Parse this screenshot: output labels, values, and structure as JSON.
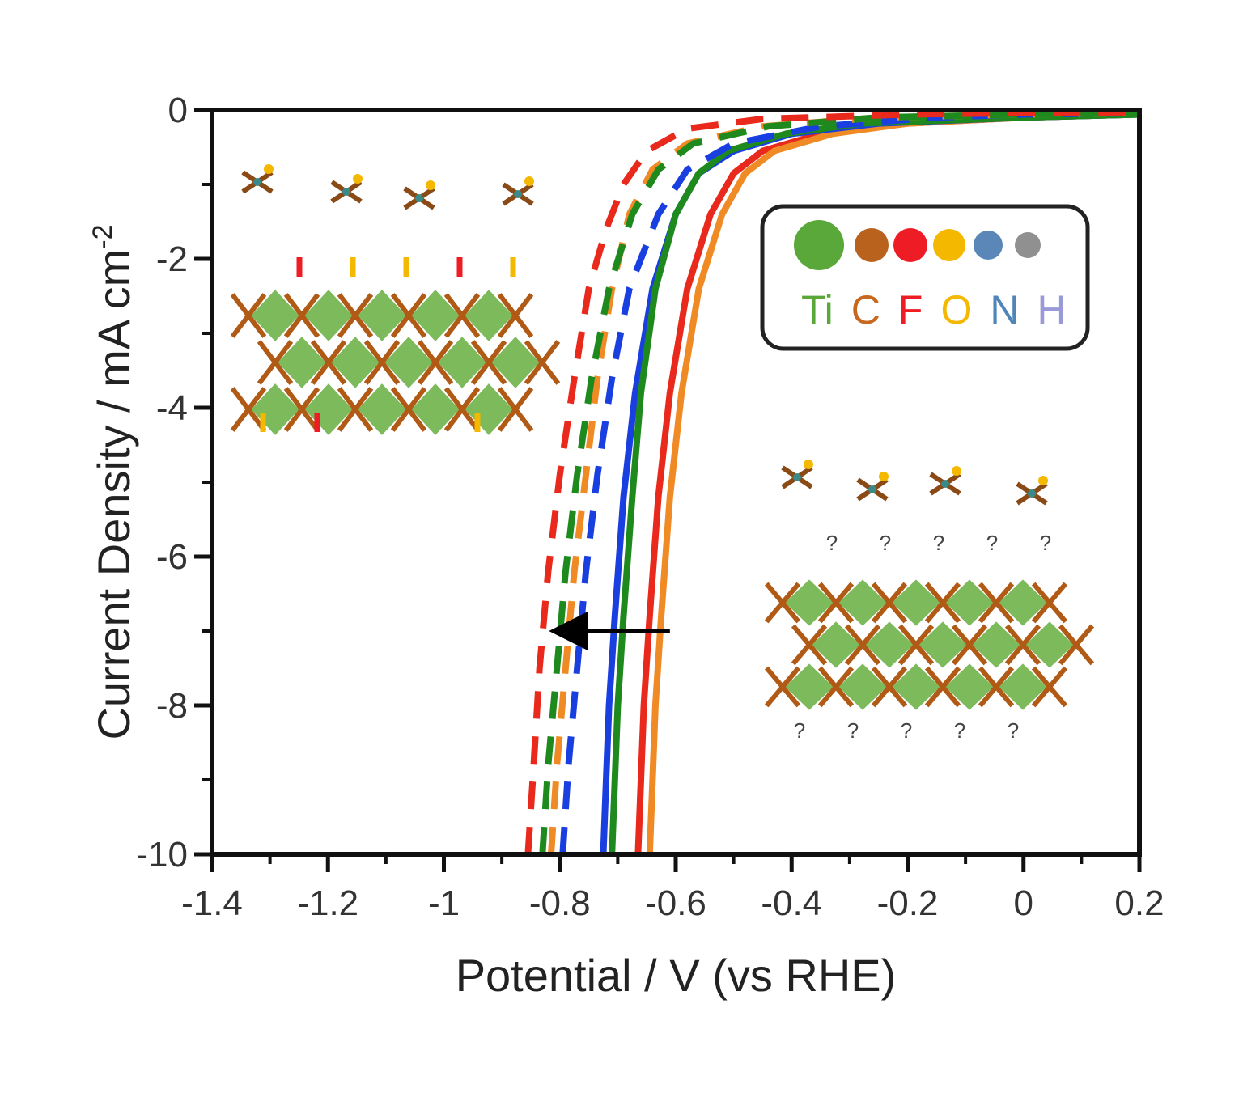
{
  "chart_data": {
    "type": "line",
    "xlabel": "Potential / V (vs RHE)",
    "ylabel": "Current Density / mA cm",
    "ylabel_sup": "-2",
    "xlim": [
      -1.4,
      0.2
    ],
    "ylim": [
      -10,
      0
    ],
    "xticks": [
      -1.4,
      -1.2,
      -1,
      -0.8,
      -0.6,
      -0.4,
      -0.2,
      0,
      0.2
    ],
    "xtick_labels": [
      "-1.4",
      "-1.2",
      "-1",
      "-0.8",
      "-0.6",
      "-0.4",
      "-0.2",
      "0",
      "0.2"
    ],
    "yticks": [
      0,
      -2,
      -4,
      -6,
      -8,
      -10
    ],
    "ytick_labels": [
      "0",
      "-2",
      "-4",
      "-6",
      "-8",
      "-10"
    ],
    "grid": false,
    "series": [
      {
        "color": "#e8291c",
        "dashed": false,
        "x": [
          -0.665,
          -0.66,
          -0.655,
          -0.645,
          -0.63,
          -0.61,
          -0.58,
          -0.54,
          -0.5,
          -0.45,
          -0.35,
          -0.2,
          0.0,
          0.2
        ],
        "y": [
          -10,
          -9,
          -8,
          -6.8,
          -5.2,
          -3.8,
          -2.4,
          -1.4,
          -0.85,
          -0.55,
          -0.32,
          -0.18,
          -0.1,
          -0.06
        ]
      },
      {
        "color": "#f08a24",
        "dashed": false,
        "x": [
          -0.645,
          -0.64,
          -0.635,
          -0.625,
          -0.61,
          -0.59,
          -0.56,
          -0.52,
          -0.48,
          -0.43,
          -0.33,
          -0.2,
          0.0,
          0.2
        ],
        "y": [
          -10,
          -9,
          -8,
          -6.8,
          -5.2,
          -3.8,
          -2.4,
          -1.4,
          -0.85,
          -0.55,
          -0.32,
          -0.18,
          -0.1,
          -0.06
        ]
      },
      {
        "color": "#1a3fe0",
        "dashed": false,
        "x": [
          -0.725,
          -0.72,
          -0.715,
          -0.705,
          -0.69,
          -0.67,
          -0.64,
          -0.6,
          -0.56,
          -0.5,
          -0.4,
          -0.25,
          0.0,
          0.2
        ],
        "y": [
          -10,
          -9,
          -8,
          -6.8,
          -5.2,
          -3.8,
          -2.4,
          -1.4,
          -0.85,
          -0.55,
          -0.32,
          -0.18,
          -0.1,
          -0.06
        ]
      },
      {
        "color": "#1e8a1e",
        "dashed": false,
        "x": [
          -0.71,
          -0.705,
          -0.7,
          -0.69,
          -0.675,
          -0.66,
          -0.635,
          -0.6,
          -0.56,
          -0.51,
          -0.41,
          -0.28,
          0.0,
          0.2
        ],
        "y": [
          -10,
          -9,
          -8,
          -6.8,
          -5.2,
          -3.8,
          -2.4,
          -1.4,
          -0.85,
          -0.55,
          -0.32,
          -0.18,
          -0.1,
          -0.06
        ]
      },
      {
        "color": "#1a3fe0",
        "dashed": true,
        "x": [
          -0.795,
          -0.785,
          -0.77,
          -0.755,
          -0.735,
          -0.71,
          -0.68,
          -0.63,
          -0.58,
          -0.5,
          -0.35,
          -0.15,
          0.0,
          0.2
        ],
        "y": [
          -10,
          -8.8,
          -7.5,
          -6.2,
          -4.9,
          -3.6,
          -2.4,
          -1.4,
          -0.8,
          -0.45,
          -0.22,
          -0.1,
          -0.06,
          -0.04
        ]
      },
      {
        "color": "#f08a24",
        "dashed": true,
        "x": [
          -0.815,
          -0.805,
          -0.79,
          -0.775,
          -0.755,
          -0.735,
          -0.71,
          -0.68,
          -0.64,
          -0.58,
          -0.45,
          -0.25,
          0.0,
          0.2
        ],
        "y": [
          -10,
          -8.8,
          -7.5,
          -6.2,
          -4.9,
          -3.6,
          -2.4,
          -1.4,
          -0.8,
          -0.45,
          -0.22,
          -0.1,
          -0.06,
          -0.04
        ]
      },
      {
        "color": "#1e8a1e",
        "dashed": true,
        "x": [
          -0.83,
          -0.82,
          -0.805,
          -0.79,
          -0.77,
          -0.745,
          -0.715,
          -0.675,
          -0.63,
          -0.57,
          -0.44,
          -0.25,
          0.0,
          0.2
        ],
        "y": [
          -10,
          -8.8,
          -7.5,
          -6.2,
          -4.9,
          -3.6,
          -2.4,
          -1.4,
          -0.8,
          -0.45,
          -0.22,
          -0.1,
          -0.06,
          -0.04
        ]
      },
      {
        "color": "#e8291c",
        "dashed": true,
        "x": [
          -0.855,
          -0.845,
          -0.835,
          -0.82,
          -0.8,
          -0.775,
          -0.75,
          -0.72,
          -0.69,
          -0.65,
          -0.58,
          -0.45,
          -0.2,
          0.0,
          0.2
        ],
        "y": [
          -10,
          -8.8,
          -7.5,
          -6.2,
          -4.9,
          -3.6,
          -2.4,
          -1.6,
          -1.0,
          -0.55,
          -0.25,
          -0.12,
          -0.06,
          -0.04,
          -0.03
        ]
      }
    ],
    "annotations": [
      {
        "type": "arrow",
        "from": [
          -0.61,
          -7.0
        ],
        "to": [
          -0.83,
          -7.0
        ],
        "color": "#000000"
      }
    ],
    "legend": {
      "placement": "top-right",
      "items": [
        {
          "label": "Ti",
          "color": "#5aa83a"
        },
        {
          "label": "C",
          "color": "#c8681e"
        },
        {
          "label": "F",
          "color": "#ee1c24"
        },
        {
          "label": "O",
          "color": "#f5b800"
        },
        {
          "label": "N",
          "color": "#4f85b8"
        },
        {
          "label": "H",
          "color": "#9a9ad8"
        }
      ],
      "dot_colors": [
        "#5aa83a",
        "#b8621e",
        "#ee1c24",
        "#f5b800",
        "#5a86b8",
        "#909090"
      ]
    }
  }
}
